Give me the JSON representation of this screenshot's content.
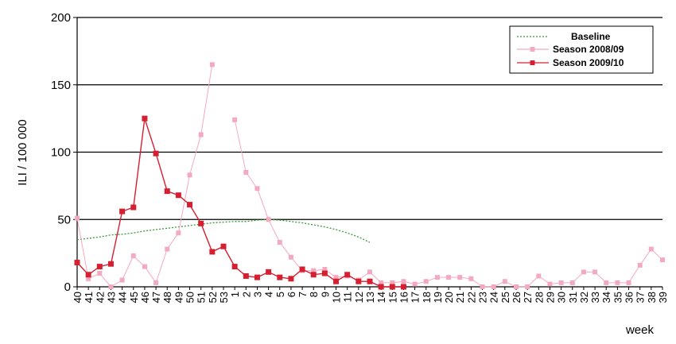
{
  "chart_data": {
    "type": "line",
    "title": "",
    "xlabel": "week",
    "ylabel": "ILI / 100 000",
    "ylim": [
      0,
      200
    ],
    "yticks": [
      0,
      50,
      100,
      150,
      200
    ],
    "grid": "horizontal",
    "legend_position": "top-right",
    "categories": [
      "40",
      "41",
      "42",
      "43",
      "44",
      "45",
      "46",
      "47",
      "48",
      "49",
      "50",
      "51",
      "52",
      "53",
      "1",
      "2",
      "3",
      "4",
      "5",
      "6",
      "7",
      "8",
      "9",
      "10",
      "11",
      "12",
      "13",
      "14",
      "15",
      "16",
      "17",
      "18",
      "19",
      "20",
      "21",
      "22",
      "23",
      "24",
      "25",
      "26",
      "27",
      "28",
      "29",
      "30",
      "31",
      "32",
      "33",
      "34",
      "35",
      "36",
      "37",
      "38",
      "39"
    ],
    "series": [
      {
        "name": "Baseline",
        "color": "#3a9a3a",
        "style": "dotted",
        "marker": "none",
        "values": [
          35,
          36,
          37,
          38.5,
          39,
          40,
          41.5,
          42.5,
          43.5,
          44.5,
          45.5,
          46.5,
          47.5,
          48,
          48.5,
          48.5,
          49.5,
          50,
          49.5,
          48.5,
          47.5,
          46,
          44.5,
          42.5,
          40,
          37,
          33,
          null,
          null,
          null,
          null,
          null,
          null,
          null,
          null,
          null,
          null,
          null,
          null,
          null,
          null,
          null,
          null,
          null,
          null,
          null,
          null,
          null,
          null,
          null,
          null,
          null,
          null
        ]
      },
      {
        "name": "Season 2008/09",
        "color": "#f4a9c2",
        "style": "solid",
        "marker": "square",
        "values": [
          51,
          6,
          10,
          0,
          5,
          23,
          15,
          3,
          28,
          40,
          83,
          113,
          165,
          null,
          124,
          85,
          73,
          50,
          33,
          22,
          12,
          12,
          13,
          7,
          8,
          5,
          11,
          3,
          3,
          4,
          2,
          4,
          7,
          7,
          7,
          6,
          0,
          0,
          4,
          0,
          0,
          8,
          2,
          3,
          3,
          11,
          11,
          3,
          3,
          3,
          16,
          28,
          20
        ]
      },
      {
        "name": "Season 2009/10",
        "color": "#d42030",
        "style": "solid",
        "marker": "square",
        "values": [
          18,
          9,
          15,
          17,
          56,
          59,
          125,
          99,
          71,
          68,
          61,
          47,
          26,
          30,
          15,
          8,
          7,
          11,
          7,
          6,
          13,
          9,
          10,
          4,
          9,
          4,
          4,
          0,
          0,
          0,
          null,
          null,
          null,
          null,
          null,
          null,
          null,
          null,
          null,
          null,
          null,
          null,
          null,
          null,
          null,
          null,
          null,
          null,
          null,
          null,
          null,
          null,
          null
        ]
      }
    ]
  }
}
